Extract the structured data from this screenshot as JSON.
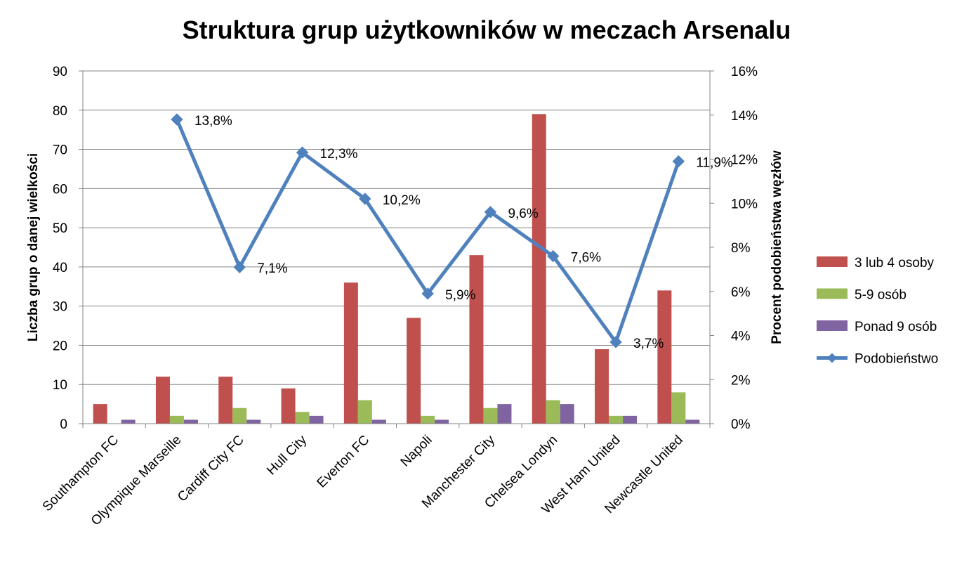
{
  "chart_data": {
    "type": "bar",
    "title": "Struktura grup użytkowników w meczach Arsenalu",
    "ylabel": "Liczba grup o danej wielkości",
    "y2label": "Procent podobieństwa węzłów",
    "categories": [
      "Southampton FC",
      "Olympique Marseille",
      "Cardiff City FC",
      "Hull City",
      "Everton FC",
      "Napoli",
      "Manchester City",
      "Chelsea Londyn",
      "West Ham United",
      "Newcastle United"
    ],
    "ylim": [
      0,
      90
    ],
    "yticks": [
      "0",
      "10",
      "20",
      "30",
      "40",
      "50",
      "60",
      "70",
      "80",
      "90"
    ],
    "y2lim": [
      0,
      16
    ],
    "y2ticks": [
      "0%",
      "2%",
      "4%",
      "6%",
      "8%",
      "10%",
      "12%",
      "14%",
      "16%"
    ],
    "grid": true,
    "legend_position": "right",
    "series": [
      {
        "name": "3 lub 4 osoby",
        "type": "bar",
        "color": "#c0504d",
        "values": [
          5,
          12,
          12,
          9,
          36,
          27,
          43,
          79,
          19,
          34
        ]
      },
      {
        "name": "5-9 osób",
        "type": "bar",
        "color": "#9bbb59",
        "values": [
          0,
          2,
          4,
          3,
          6,
          2,
          4,
          6,
          2,
          8
        ]
      },
      {
        "name": "Ponad 9 osób",
        "type": "bar",
        "color": "#8064a2",
        "values": [
          1,
          1,
          1,
          2,
          1,
          1,
          5,
          5,
          2,
          1
        ]
      },
      {
        "name": "Podobieństwo",
        "type": "line",
        "axis": "right",
        "color": "#4f81bd",
        "marker": "diamond",
        "values": [
          null,
          13.8,
          7.1,
          12.3,
          10.2,
          5.9,
          9.6,
          7.6,
          3.7,
          11.9
        ],
        "labels": [
          null,
          "13,8%",
          "7,1%",
          "12,3%",
          "10,2%",
          "5,9%",
          "9,6%",
          "7,6%",
          "3,7%",
          "11,9%"
        ]
      }
    ]
  }
}
